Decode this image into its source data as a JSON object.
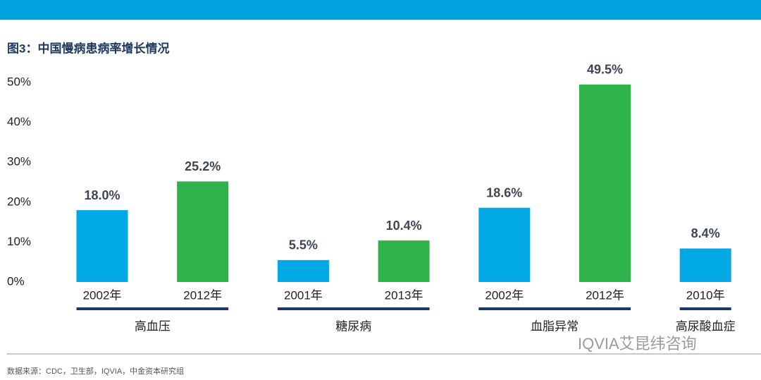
{
  "chart_data": {
    "type": "bar",
    "title": "图3：中国慢病患病率增长情况",
    "groups": [
      {
        "name": "高血压",
        "categories": [
          "2002年",
          "2012年"
        ],
        "values": [
          18.0,
          25.2
        ],
        "value_labels": [
          "18.0%",
          "25.2%"
        ],
        "colors": [
          "#00a8e4",
          "#2eb34b"
        ]
      },
      {
        "name": "糖尿病",
        "categories": [
          "2001年",
          "2013年"
        ],
        "values": [
          5.5,
          10.4
        ],
        "value_labels": [
          "5.5%",
          "10.4%"
        ],
        "colors": [
          "#00a8e4",
          "#2eb34b"
        ]
      },
      {
        "name": "血脂异常",
        "categories": [
          "2002年",
          "2012年"
        ],
        "values": [
          18.6,
          49.5
        ],
        "value_labels": [
          "18.6%",
          "49.5%"
        ],
        "colors": [
          "#00a8e4",
          "#2eb34b"
        ]
      },
      {
        "name": "高尿酸血症",
        "categories": [
          "2010年"
        ],
        "values": [
          8.4
        ],
        "value_labels": [
          "8.4%"
        ],
        "colors": [
          "#00a8e4"
        ]
      }
    ],
    "ylim": [
      0,
      50
    ],
    "yticks": [
      {
        "value": 0,
        "label": "0%"
      },
      {
        "value": 10,
        "label": "10%"
      },
      {
        "value": 20,
        "label": "20%"
      },
      {
        "value": 30,
        "label": "30%"
      },
      {
        "value": 40,
        "label": "40%"
      },
      {
        "value": 50,
        "label": "50%"
      }
    ],
    "grid": false,
    "source": "数据来源：CDC，卫生部，IQVIA，中金资本研究组",
    "watermark": "IQVIA艾昆纬咨询"
  }
}
